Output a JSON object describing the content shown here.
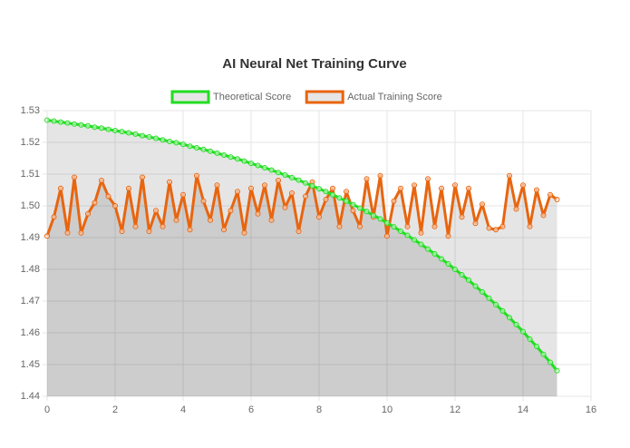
{
  "chart_data": {
    "type": "line",
    "title": "AI Neural Net Training Curve",
    "x": [
      0,
      0.2,
      0.4,
      0.6,
      0.8,
      1,
      1.2,
      1.4,
      1.6,
      1.8,
      2,
      2.2,
      2.4,
      2.6,
      2.8,
      3,
      3.2,
      3.4,
      3.6,
      3.8,
      4,
      4.2,
      4.4,
      4.6,
      4.8,
      5,
      5.2,
      5.4,
      5.6,
      5.8,
      6,
      6.2,
      6.4,
      6.6,
      6.8,
      7,
      7.2,
      7.4,
      7.6,
      7.8,
      8,
      8.2,
      8.4,
      8.6,
      8.8,
      9,
      9.2,
      9.4,
      9.6,
      9.8,
      10,
      10.2,
      10.4,
      10.6,
      10.8,
      11,
      11.2,
      11.4,
      11.6,
      11.8,
      12,
      12.2,
      12.4,
      12.6,
      12.8,
      13,
      13.2,
      13.4,
      13.6,
      13.8,
      14,
      14.2,
      14.4,
      14.6,
      14.8,
      15
    ],
    "series": [
      {
        "name": "Theoretical Score",
        "color": "#22dd22",
        "fill_color": "rgba(0,0,0,0.1)",
        "values": [
          1.527,
          1.5267,
          1.5264,
          1.5261,
          1.5258,
          1.5255,
          1.5252,
          1.5248,
          1.5245,
          1.5241,
          1.5237,
          1.5234,
          1.523,
          1.5226,
          1.5221,
          1.5217,
          1.5213,
          1.5208,
          1.5203,
          1.5199,
          1.5194,
          1.5188,
          1.5183,
          1.5178,
          1.5172,
          1.5166,
          1.516,
          1.5154,
          1.5148,
          1.5141,
          1.5134,
          1.5127,
          1.512,
          1.5113,
          1.5105,
          1.5097,
          1.5089,
          1.5081,
          1.5072,
          1.5063,
          1.5054,
          1.5045,
          1.5035,
          1.5025,
          1.5015,
          1.5004,
          1.4993,
          1.4982,
          1.497,
          1.4959,
          1.4946,
          1.4934,
          1.492,
          1.4907,
          1.4893,
          1.4879,
          1.4864,
          1.4849,
          1.4833,
          1.4817,
          1.48,
          1.4783,
          1.4766,
          1.4747,
          1.4729,
          1.4709,
          1.4689,
          1.4669,
          1.4648,
          1.4626,
          1.4604,
          1.458,
          1.4557,
          1.4532,
          1.4507,
          1.4481
        ]
      },
      {
        "name": "Actual Training Score",
        "color": "#e8650f",
        "fill_color": "rgba(0,0,0,0.1)",
        "values": [
          1.4905,
          1.4965,
          1.5055,
          1.4915,
          1.509,
          1.4915,
          1.4975,
          1.501,
          1.508,
          1.503,
          1.5,
          1.492,
          1.5055,
          1.4935,
          1.509,
          1.492,
          1.4985,
          1.4935,
          1.5075,
          1.4955,
          1.5035,
          1.4925,
          1.5095,
          1.5015,
          1.4955,
          1.5065,
          1.4925,
          1.4985,
          1.5045,
          1.4915,
          1.5055,
          1.4975,
          1.5065,
          1.4955,
          1.508,
          1.4995,
          1.504,
          1.492,
          1.503,
          1.5075,
          1.4965,
          1.502,
          1.5055,
          1.4935,
          1.5045,
          1.4985,
          1.4935,
          1.5085,
          1.4965,
          1.5095,
          1.4905,
          1.5015,
          1.5055,
          1.4935,
          1.5065,
          1.4915,
          1.5085,
          1.4935,
          1.5055,
          1.4905,
          1.5065,
          1.4965,
          1.5055,
          1.4945,
          1.5005,
          1.493,
          1.4925,
          1.4935,
          1.5095,
          1.499,
          1.5065,
          1.4935,
          1.505,
          1.497,
          1.5035,
          1.502
        ]
      }
    ],
    "xlim": [
      0,
      16
    ],
    "xticks": [
      0,
      2,
      4,
      6,
      8,
      10,
      12,
      14,
      16
    ],
    "ylim": [
      1.44,
      1.53
    ],
    "yticks": [
      1.44,
      1.45,
      1.46,
      1.47,
      1.48,
      1.49,
      {
        "value": 1.5,
        "label": "1.50"
      },
      1.51,
      1.52,
      1.53
    ],
    "grid": true,
    "legend": "top"
  }
}
